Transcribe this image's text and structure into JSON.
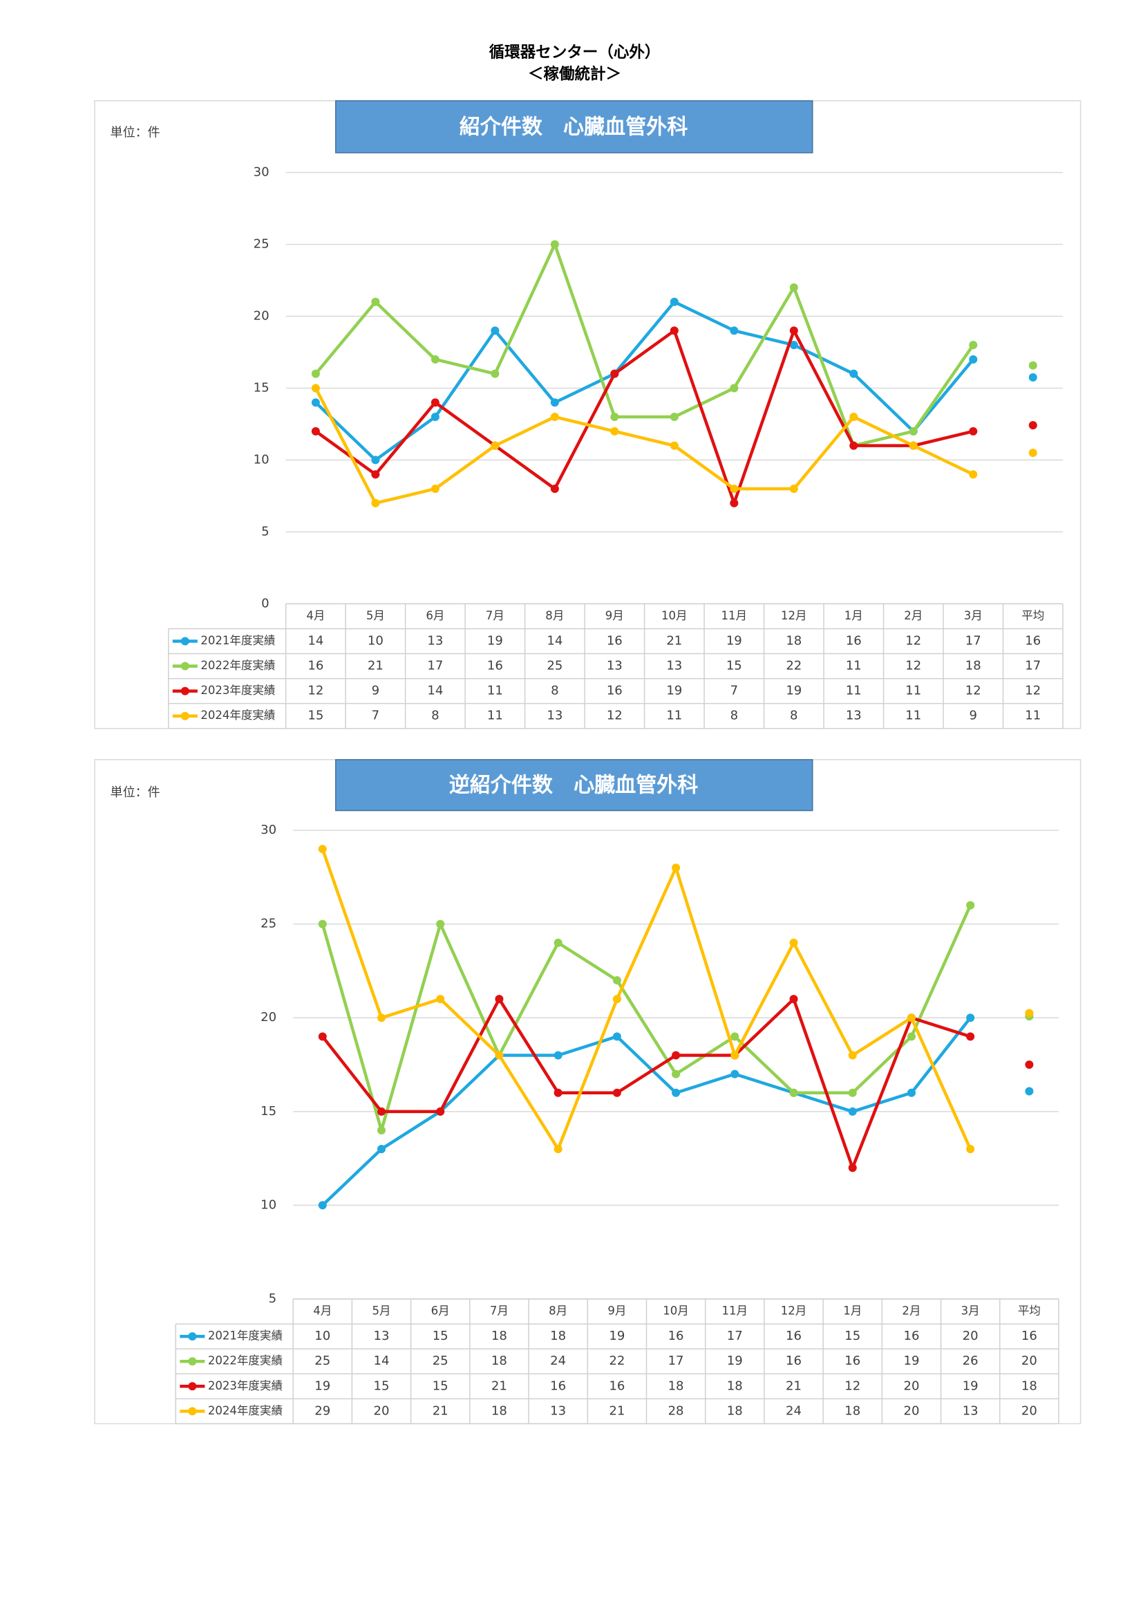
{
  "page_title": "循環器センター（心外）",
  "page_subtitle": "＜稼働統計＞",
  "chart_data": [
    {
      "type": "line",
      "title": "紹介件数　心臓血管外科",
      "unit_label": "単位：件",
      "categories": [
        "4月",
        "5月",
        "6月",
        "7月",
        "8月",
        "9月",
        "10月",
        "11月",
        "12月",
        "1月",
        "2月",
        "3月"
      ],
      "average_label": "平均",
      "ylim": [
        0,
        30
      ],
      "yticks": [
        0,
        5,
        10,
        15,
        20,
        25,
        30
      ],
      "grid": true,
      "series": [
        {
          "name": "2021年度実績",
          "color": "#1fa8e0",
          "values": [
            14,
            10,
            13,
            19,
            14,
            16,
            21,
            19,
            18,
            16,
            12,
            17
          ],
          "average": 15.75,
          "average_value_label": "16"
        },
        {
          "name": "2022年度実績",
          "color": "#92d050",
          "values": [
            16,
            21,
            17,
            16,
            25,
            13,
            13,
            15,
            22,
            11,
            12,
            18
          ],
          "average": 16.58,
          "average_value_label": "17"
        },
        {
          "name": "2023年度実績",
          "color": "#e01010",
          "values": [
            12,
            9,
            14,
            11,
            8,
            16,
            19,
            7,
            19,
            11,
            11,
            12
          ],
          "average": 12.42,
          "average_value_label": "12"
        },
        {
          "name": "2024年度実績",
          "color": "#ffc000",
          "values": [
            15,
            7,
            8,
            11,
            13,
            12,
            11,
            8,
            8,
            13,
            11,
            9
          ],
          "average": 10.5,
          "average_value_label": "11"
        }
      ]
    },
    {
      "type": "line",
      "title": "逆紹介件数　心臓血管外科",
      "unit_label": "単位：件",
      "categories": [
        "4月",
        "5月",
        "6月",
        "7月",
        "8月",
        "9月",
        "10月",
        "11月",
        "12月",
        "1月",
        "2月",
        "3月"
      ],
      "average_label": "平均",
      "ylim": [
        5,
        30
      ],
      "yticks": [
        5,
        10,
        15,
        20,
        25,
        30
      ],
      "grid": true,
      "series": [
        {
          "name": "2021年度実績",
          "color": "#1fa8e0",
          "values": [
            10,
            13,
            15,
            18,
            18,
            19,
            16,
            17,
            16,
            15,
            16,
            20
          ],
          "average": 16.08,
          "average_value_label": "16"
        },
        {
          "name": "2022年度実績",
          "color": "#92d050",
          "values": [
            25,
            14,
            25,
            18,
            24,
            22,
            17,
            19,
            16,
            16,
            19,
            26
          ],
          "average": 20.08,
          "average_value_label": "20"
        },
        {
          "name": "2023年度実績",
          "color": "#e01010",
          "values": [
            19,
            15,
            15,
            21,
            16,
            16,
            18,
            18,
            21,
            12,
            20,
            19
          ],
          "average": 17.5,
          "average_value_label": "18"
        },
        {
          "name": "2024年度実績",
          "color": "#ffc000",
          "values": [
            29,
            20,
            21,
            18,
            13,
            21,
            28,
            18,
            24,
            18,
            20,
            13
          ],
          "average": 20.25,
          "average_value_label": "20"
        }
      ]
    }
  ]
}
